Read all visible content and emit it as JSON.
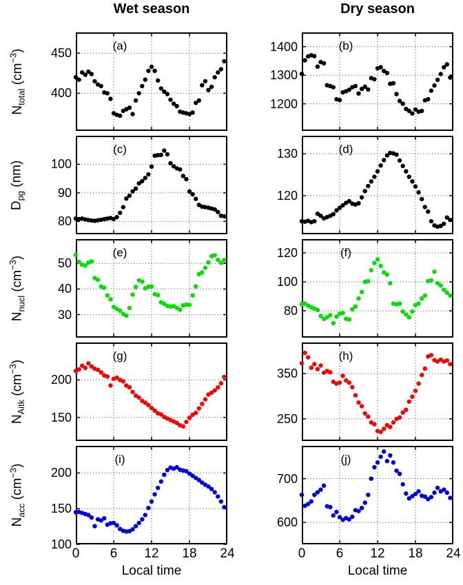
{
  "figure": {
    "titles": {
      "wet": "Wet season",
      "dry": "Dry season"
    },
    "xlabel": "Local time",
    "x_ticks": [
      "0",
      "6",
      "12",
      "18",
      "24"
    ],
    "background": "#ffffff",
    "axis_color": "#000000",
    "grid_color": "#333333"
  },
  "chart_data": {
    "type": "scatter",
    "x_label": "Local time",
    "x_range": [
      0,
      24
    ],
    "x_gridlines": [
      6,
      12,
      18
    ],
    "x_tick_values": [
      0,
      6,
      12,
      18,
      24
    ],
    "grid": true,
    "x_hours": [
      0,
      0.5,
      1,
      1.5,
      2,
      2.5,
      3,
      3.5,
      4,
      4.5,
      5,
      5.5,
      6,
      6.5,
      7,
      7.5,
      8,
      8.5,
      9,
      9.5,
      10,
      10.5,
      11,
      11.5,
      12,
      12.5,
      13,
      13.5,
      14,
      14.5,
      15,
      15.5,
      16,
      16.5,
      17,
      17.5,
      18,
      18.5,
      19,
      19.5,
      20,
      20.5,
      21,
      21.5,
      22,
      22.5,
      23,
      23.5
    ],
    "panels": [
      {
        "id": "a",
        "letter": "(a)",
        "row": 0,
        "col": 0,
        "season": "Wet",
        "quantity": "N_total",
        "ylabel": {
          "base": "N",
          "sub": "total",
          "unit": "cm",
          "sup": "−3"
        },
        "color": "#000000",
        "yticks": [
          400,
          450
        ],
        "ylim": [
          353,
          476
        ],
        "y": [
          420,
          417,
          426,
          423,
          427,
          424,
          415,
          411,
          409,
          401,
          400,
          393,
          375,
          373,
          372,
          378,
          380,
          382,
          374,
          391,
          400,
          409,
          417,
          428,
          433,
          428,
          416,
          406,
          402,
          399,
          392,
          387,
          384,
          377,
          376,
          375,
          374,
          376,
          388,
          391,
          410,
          415,
          404,
          408,
          420,
          426,
          430,
          440
        ]
      },
      {
        "id": "b",
        "letter": "(b)",
        "row": 0,
        "col": 1,
        "season": "Dry",
        "quantity": "N_total",
        "ylabel": null,
        "color": "#000000",
        "yticks": [
          1200,
          1300,
          1400
        ],
        "ylim": [
          1105,
          1450
        ],
        "y": [
          1305,
          1352,
          1366,
          1370,
          1367,
          1330,
          1346,
          1342,
          1265,
          1262,
          1258,
          1216,
          1213,
          1240,
          1244,
          1249,
          1258,
          1262,
          1236,
          1252,
          1260,
          1250,
          1290,
          1286,
          1324,
          1328,
          1315,
          1308,
          1270,
          1272,
          1234,
          1210,
          1200,
          1182,
          1175,
          1166,
          1180,
          1172,
          1175,
          1212,
          1216,
          1246,
          1264,
          1284,
          1304,
          1328,
          1338,
          1292
        ]
      },
      {
        "id": "c",
        "letter": "(c)",
        "row": 1,
        "col": 0,
        "season": "Wet",
        "quantity": "D_pg",
        "ylabel": {
          "base": "D",
          "sub": "pg",
          "unit": "nm",
          "sup": ""
        },
        "color": "#000000",
        "yticks": [
          80,
          90,
          100
        ],
        "ylim": [
          75.5,
          110
        ],
        "y": [
          81,
          80.8,
          81,
          80.7,
          80.5,
          80.3,
          80.2,
          80.4,
          80.6,
          80.8,
          81,
          81.2,
          80.8,
          81.5,
          83,
          85,
          88,
          89,
          90.5,
          91.5,
          93.3,
          94.1,
          95.2,
          96.5,
          99.2,
          103,
          103.2,
          103.3,
          104.8,
          103.5,
          100.4,
          99.3,
          98.6,
          98.2,
          95.9,
          94.8,
          90.5,
          89.5,
          87.9,
          85.8,
          85.2,
          85,
          84.8,
          84.5,
          84.2,
          83.3,
          82,
          81.8
        ]
      },
      {
        "id": "d",
        "letter": "(d)",
        "row": 1,
        "col": 1,
        "season": "Dry",
        "quantity": "D_pg",
        "ylabel": null,
        "color": "#000000",
        "yticks": [
          120,
          130
        ],
        "ylim": [
          110.8,
          134.3
        ],
        "y": [
          113.9,
          113.8,
          114,
          113.7,
          113.9,
          115.7,
          115.2,
          114.6,
          114.9,
          115.2,
          115.6,
          116.5,
          117.1,
          117.7,
          118.3,
          118.7,
          118.1,
          117.9,
          118.2,
          119.6,
          121.1,
          122.3,
          123.4,
          124.5,
          125.8,
          127.2,
          128.5,
          129.6,
          130.2,
          130.1,
          129.8,
          128.4,
          127.1,
          125.8,
          124.5,
          123.4,
          122.2,
          120.8,
          119.2,
          117.3,
          116.2,
          113.9,
          112.9,
          112.6,
          112.8,
          113.3,
          114.8,
          114.2
        ]
      },
      {
        "id": "e",
        "letter": "(e)",
        "row": 2,
        "col": 0,
        "season": "Wet",
        "quantity": "N_nucl",
        "ylabel": {
          "base": "N",
          "sub": "nucl",
          "unit": "cm",
          "sup": "−3"
        },
        "color": "#00e100",
        "yticks": [
          30,
          40,
          50
        ],
        "ylim": [
          21,
          59.5
        ],
        "y": [
          53.3,
          50.6,
          49.5,
          49.2,
          50.3,
          50.8,
          44.3,
          43.6,
          41,
          40.5,
          37.5,
          36,
          33,
          32.2,
          31.5,
          30.2,
          29.6,
          32.6,
          37.8,
          40.8,
          43.4,
          42.9,
          40.3,
          40.9,
          41,
          38,
          37.6,
          34.8,
          34.2,
          33.4,
          33.1,
          33.3,
          32.6,
          31.9,
          33.6,
          33.9,
          33.8,
          37.5,
          41,
          45.8,
          46.5,
          48.3,
          50.4,
          52.8,
          53.2,
          51.4,
          50.2,
          51.3
        ]
      },
      {
        "id": "f",
        "letter": "(f)",
        "row": 2,
        "col": 1,
        "season": "Dry",
        "quantity": "N_nucl",
        "ylabel": null,
        "color": "#00e100",
        "yticks": [
          80,
          100,
          120
        ],
        "ylim": [
          61.5,
          129.5
        ],
        "y": [
          84.5,
          85,
          83.5,
          82.5,
          81.5,
          80.5,
          76.5,
          74.5,
          75.5,
          77,
          71.5,
          76,
          78,
          78.5,
          74.5,
          74,
          81,
          83,
          88.5,
          93,
          100,
          100.5,
          108,
          113,
          115.5,
          111,
          106.5,
          105,
          99,
          85,
          84.5,
          85,
          79.5,
          77.5,
          75.5,
          79.5,
          84,
          85,
          88.5,
          90.5,
          100.5,
          101,
          107,
          99,
          97.5,
          94.5,
          92.5,
          90.5
        ]
      },
      {
        "id": "g",
        "letter": "(g)",
        "row": 3,
        "col": 0,
        "season": "Wet",
        "quantity": "N_Aitk",
        "ylabel": {
          "base": "N",
          "sub": "Aitk",
          "unit": "cm",
          "sup": "−3"
        },
        "color": "#ff0000",
        "yticks": [
          150,
          200
        ],
        "ylim": [
          118.5,
          250
        ],
        "y": [
          212,
          214,
          219,
          216,
          222,
          218,
          215,
          213.5,
          210,
          206,
          204.5,
          192.5,
          201.5,
          203,
          200,
          198,
          192.5,
          190,
          184,
          179,
          176.5,
          172,
          169.5,
          166.5,
          162.5,
          159,
          155.5,
          154,
          150.5,
          148.5,
          146.5,
          144.5,
          142.5,
          139.5,
          138,
          144,
          149.5,
          153.5,
          156,
          162,
          168,
          174,
          180.5,
          183,
          186,
          190,
          195.5,
          204
        ]
      },
      {
        "id": "h",
        "letter": "(h)",
        "row": 3,
        "col": 1,
        "season": "Dry",
        "quantity": "N_Aitk",
        "ylabel": null,
        "color": "#ff0000",
        "yticks": [
          250,
          350
        ],
        "ylim": [
          201,
          419
        ],
        "y": [
          373,
          396,
          386,
          363,
          371,
          360,
          368,
          352,
          356,
          353,
          332,
          328,
          330,
          345,
          335,
          330,
          320,
          302,
          286,
          278,
          262,
          255,
          242,
          238,
          223,
          221,
          228,
          236,
          232,
          242,
          250,
          253,
          264,
          270,
          288,
          299,
          312,
          328,
          347,
          361,
          388,
          391,
          380,
          377,
          381,
          377,
          379,
          371
        ]
      },
      {
        "id": "i",
        "letter": "(i)",
        "row": 4,
        "col": 0,
        "season": "Wet",
        "quantity": "N_acc",
        "ylabel": {
          "base": "N",
          "sub": "acc",
          "unit": "cm",
          "sup": "−3"
        },
        "color": "#0000e6",
        "yticks": [
          100,
          150,
          200
        ],
        "ylim": [
          100,
          238
        ],
        "y": [
          145,
          145.5,
          144,
          142.5,
          141,
          137.5,
          125.5,
          135,
          133.5,
          136.5,
          127.5,
          129.5,
          130,
          126.5,
          121.5,
          119,
          118,
          118.5,
          121,
          125.5,
          130,
          135,
          141,
          151,
          160,
          170,
          179,
          188,
          197.5,
          204,
          207.5,
          206,
          208,
          204.5,
          203.5,
          202.5,
          199,
          196,
          193,
          190,
          186.5,
          183.5,
          181,
          177.5,
          173,
          167,
          160,
          152
        ]
      },
      {
        "id": "j",
        "letter": "(j)",
        "row": 4,
        "col": 1,
        "season": "Dry",
        "quantity": "N_acc",
        "ylabel": null,
        "color": "#0000e6",
        "yticks": [
          600,
          700
        ],
        "ylim": [
          550,
          775
        ],
        "y": [
          663,
          638,
          642,
          648,
          663,
          669,
          675,
          684,
          637,
          635,
          616,
          624,
          612,
          606,
          610,
          607,
          613,
          628,
          626,
          633,
          645,
          663,
          700,
          726,
          737,
          750,
          762,
          740,
          753,
          737,
          718,
          711,
          687,
          666,
          655,
          660,
          665,
          671,
          661,
          659,
          653,
          658,
          668,
          679,
          671,
          675,
          668,
          656
        ]
      }
    ]
  }
}
